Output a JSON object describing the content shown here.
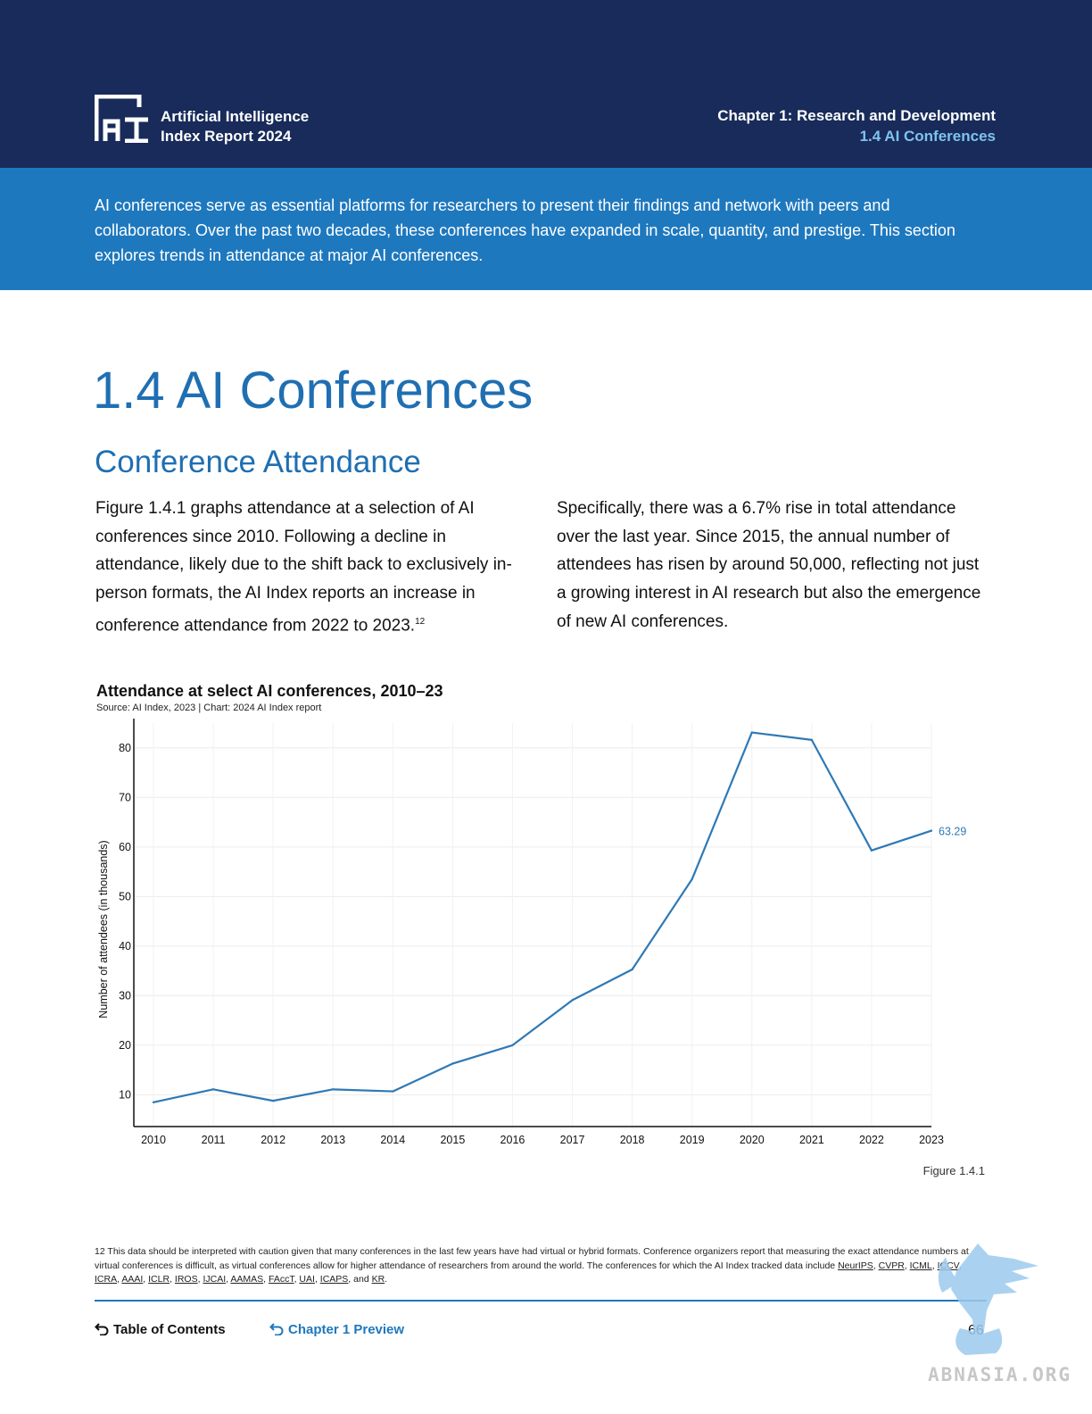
{
  "header": {
    "report_line1": "Artificial Intelligence",
    "report_line2": "Index Report 2024",
    "chapter": "Chapter 1: Research and Development",
    "section": "1.4 AI Conferences"
  },
  "intro": "AI conferences serve as essential platforms for researchers to present their findings and network with peers and collaborators. Over the past two decades, these conferences have expanded in scale, quantity, and prestige. This section explores trends in attendance at major AI conferences.",
  "section_title": "1.4 AI Conferences",
  "subsection_title": "Conference Attendance",
  "body": {
    "left": "Figure 1.4.1 graphs attendance at a selection of AI conferences since 2010. Following a decline in attendance, likely due to the shift back to exclusively in-person formats, the AI Index reports an increase in conference attendance from 2022 to 2023.",
    "left_footnote_ref": "12",
    "right": "Specifically, there was a 6.7% rise in total attendance over the last year. Since 2015, the annual number of attendees has risen by around 50,000, reflecting not just a growing interest in AI research but also the emergence of new AI conferences."
  },
  "chart_data": {
    "type": "line",
    "title": "Attendance at select AI conferences, 2010–23",
    "source": "Source: AI Index, 2023 | Chart: 2024 AI Index report",
    "ylabel": "Number of attendees (in thousands)",
    "xlabel": "",
    "x": [
      "2010",
      "2011",
      "2012",
      "2013",
      "2014",
      "2015",
      "2016",
      "2017",
      "2018",
      "2019",
      "2020",
      "2021",
      "2022",
      "2023"
    ],
    "series": [
      {
        "values": [
          8.5,
          11.1,
          8.8,
          11.1,
          10.7,
          16.3,
          20.0,
          29.1,
          35.3,
          53.5,
          83.1,
          81.6,
          59.3,
          63.29
        ]
      }
    ],
    "ylim": [
      3.6,
      85
    ],
    "yticks": [
      10,
      20,
      30,
      40,
      50,
      60,
      70,
      80
    ],
    "end_label": "63.29",
    "grid": true,
    "line_color": "#2f79b5"
  },
  "figure_label": "Figure 1.4.1",
  "footnote": {
    "lead": "12 This data should be interpreted with caution given that many conferences in the last few years have had virtual or hybrid formats. Conference organizers report that measuring the exact attendance numbers at virtual conferences is difficult, as virtual conferences allow for higher attendance of researchers from around the world. The conferences for which the AI Index tracked data include",
    "conferences": [
      "NeurIPS",
      "CVPR",
      "ICML",
      "ICCV",
      "ICRA",
      "AAAI",
      "ICLR",
      "IROS",
      "IJCAI",
      "AAMAS",
      "FAccT",
      "UAI",
      "ICAPS"
    ],
    "and_word": "and",
    "last": "KR"
  },
  "nav": {
    "toc": "Table of Contents",
    "chapter_preview": "Chapter 1 Preview"
  },
  "page_number": "66",
  "watermark_text": "ABNASIA.ORG"
}
